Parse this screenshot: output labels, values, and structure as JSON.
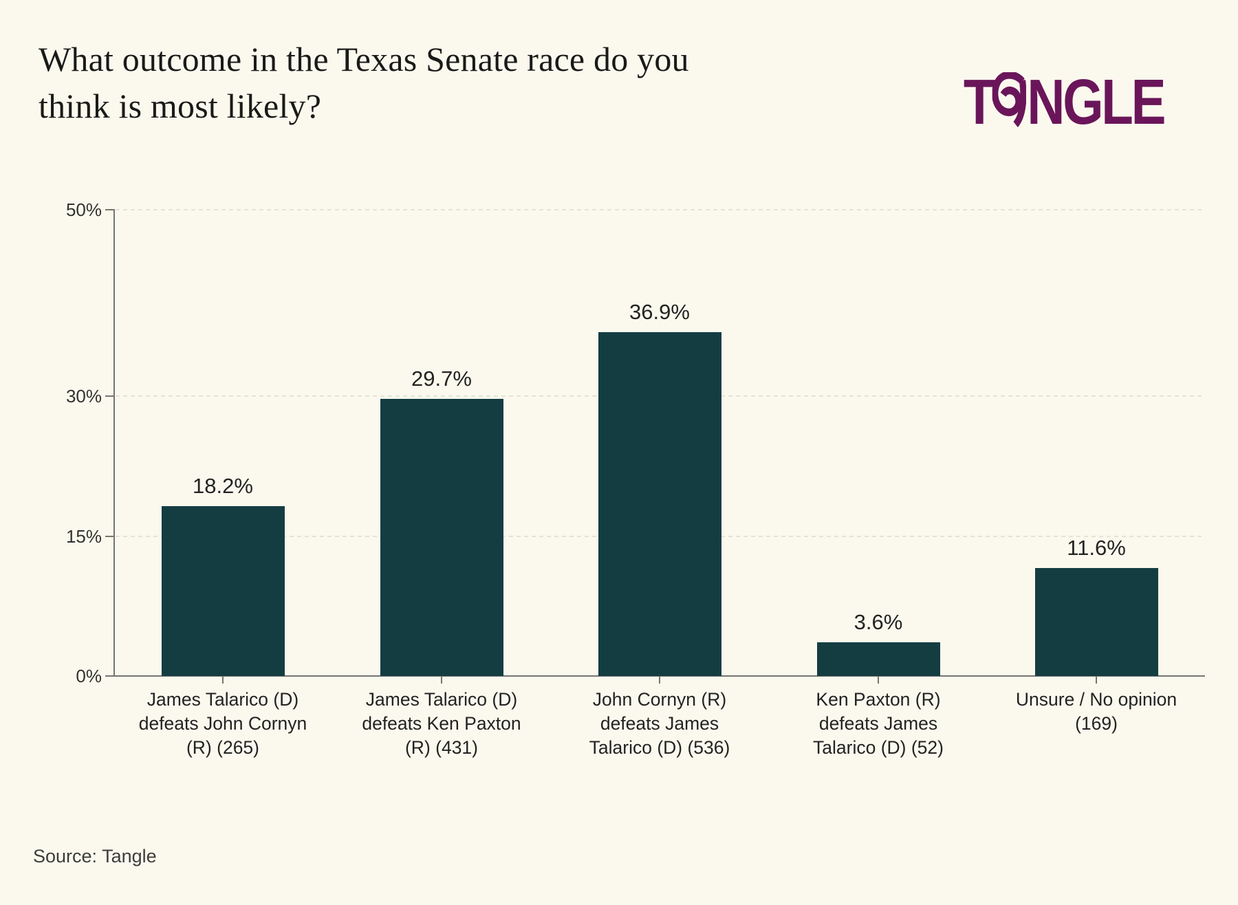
{
  "header": {
    "title": "What outcome in the Texas Senate race do you think is most likely?",
    "title_line1": "What outcome in the Texas Senate race do you",
    "title_line2": "think is most likely?",
    "logo": {
      "brand": "Tangle",
      "letter_before_swirl": "T",
      "letters_after_swirl": "NGLE",
      "swirl_icon": "tangle-a-swirl-icon",
      "color": "#6a155a"
    }
  },
  "chart_data": {
    "type": "bar",
    "title": "What outcome in the Texas Senate race do you think is most likely?",
    "categories": [
      "James Talarico (D) defeats John Cornyn (R) (265)",
      "James Talarico (D) defeats Ken Paxton (R) (431)",
      "John Cornyn (R) defeats James Talarico (D) (536)",
      "Ken Paxton (R) defeats James Talarico (D) (52)",
      "Unsure / No opinion (169)"
    ],
    "category_lines": [
      [
        "James Talarico (D)",
        "defeats John Cornyn",
        "(R) (265)"
      ],
      [
        "James Talarico (D)",
        "defeats Ken Paxton",
        "(R) (431)"
      ],
      [
        "John Cornyn (R)",
        "defeats James",
        "Talarico (D) (536)"
      ],
      [
        "Ken Paxton (R)",
        "defeats James",
        "Talarico (D) (52)"
      ],
      [
        "Unsure / No opinion",
        "(169)"
      ]
    ],
    "values": [
      18.2,
      29.7,
      36.9,
      3.6,
      11.6
    ],
    "value_labels": [
      "18.2%",
      "29.7%",
      "36.9%",
      "3.6%",
      "11.6%"
    ],
    "response_counts": [
      265,
      431,
      536,
      52,
      169
    ],
    "xlabel": "",
    "ylabel": "",
    "ylim": [
      0,
      50
    ],
    "yticks": [
      {
        "value": 0,
        "label": "0%"
      },
      {
        "value": 15,
        "label": "15%"
      },
      {
        "value": 30,
        "label": "30%"
      },
      {
        "value": 50,
        "label": "50%"
      }
    ],
    "grid": "horizontal dashed at 15%, 30%, 50%",
    "legend": "none",
    "bar_color": "#143d42",
    "axis_color": "#75756f"
  },
  "footer": {
    "source": "Source: Tangle"
  }
}
